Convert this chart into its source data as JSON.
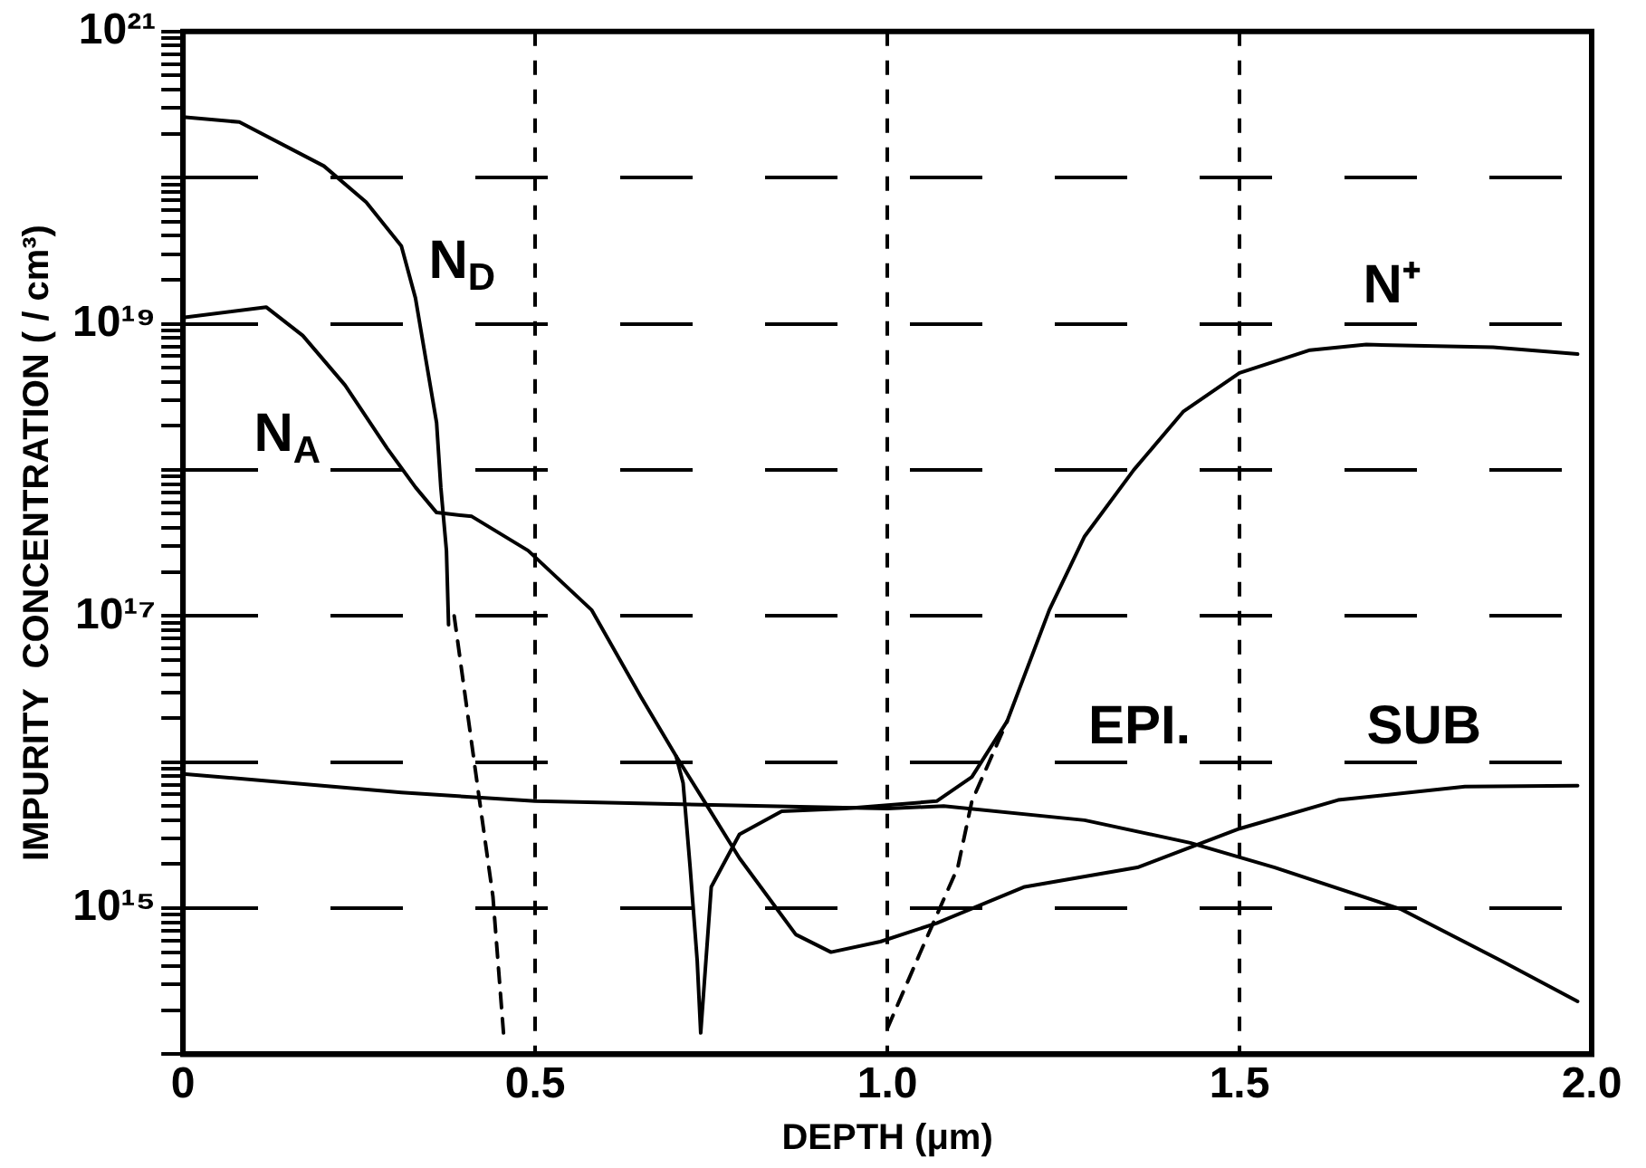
{
  "chart_data": {
    "type": "line",
    "xlabel": "DEPTH (μm)",
    "ylabel": "IMPURITY  CONCENTRATION ( / cm³)",
    "series": [
      {
        "name": "N$_{D}$",
        "color": "#000000",
        "x": [
          0,
          0.08,
          0.2,
          0.26,
          0.31,
          0.33,
          0.345,
          0.36,
          0.366,
          0.374,
          0.377
        ],
        "values": [
          2.6e+20,
          2.4e+20,
          1.2e+20,
          6.8e+19,
          3.4e+19,
          1.5e+19,
          5.6e+18,
          2.1e+18,
          7.6e+17,
          2.8e+17,
          8.7e+16
        ]
      },
      {
        "color": "#000000",
        "line_style": "dashed",
        "x": [
          0.385,
          0.42,
          0.44,
          0.455
        ],
        "values": [
          1e+17,
          5900000000000000.0,
          1200000000000000.0,
          140000000000000.0
        ]
      },
      {
        "name": "N$_{A}$",
        "color": "#000000",
        "x": [
          0,
          0.118,
          0.17,
          0.23,
          0.29,
          0.33,
          0.36,
          0.41,
          0.49,
          0.58,
          0.65,
          0.7,
          0.74,
          0.79,
          0.87,
          0.92,
          0.99,
          1.07,
          1.195,
          1.355,
          1.5,
          1.64,
          1.82,
          1.98
        ],
        "values": [
          1.1e+19,
          1.3e+19,
          8.3e+18,
          3.8e+18,
          1.4e+18,
          7.6e+17,
          5.1e+17,
          4.8e+17,
          2.8e+17,
          1.1e+17,
          2.8e+16,
          1.1e+16,
          5400000000000000.0,
          2200000000000000.0,
          660000000000000.0,
          500000000000000.0,
          590000000000000.0,
          790000000000000.0,
          1400000000000000.0,
          1900000000000000.0,
          3500000000000000.0,
          5500000000000000.0,
          6800000000000000.0,
          6900000000000000.0
        ]
      },
      {
        "name": "N⁺",
        "color": "#000000",
        "x": [
          0.7,
          0.71,
          0.72,
          0.73,
          0.735,
          0.75,
          0.79,
          0.85,
          0.94,
          1.07,
          1.12,
          1.17,
          1.23,
          1.28,
          1.35,
          1.42,
          1.5,
          1.6,
          1.68,
          1.86,
          1.98
        ],
        "values": [
          1.1e+16,
          7200000000000000.0,
          1900000000000000.0,
          440000000000000.0,
          140000000000000.0,
          1400000000000000.0,
          3200000000000000.0,
          4600000000000000.0,
          4800000000000000.0,
          5400000000000000.0,
          7900000000000000.0,
          1.9e+16,
          1.1e+17,
          3.5e+17,
          1e+18,
          2.5e+18,
          4.6e+18,
          6.6e+18,
          7.2e+18,
          6.9e+18,
          6.2e+18
        ]
      },
      {
        "color": "#000000",
        "line_style": "dashed",
        "x": [
          1,
          1.05,
          1.1,
          1.12,
          1.17
        ],
        "values": [
          150000000000000.0,
          540000000000000.0,
          1900000000000000.0,
          5400000000000000.0,
          1.9e+16
        ]
      },
      {
        "color": "#000000",
        "x": [
          0,
          0.31,
          0.5,
          1,
          1.08,
          1.28,
          1.43,
          1.55,
          1.73,
          1.87,
          1.98
        ],
        "values": [
          8300000000000000.0,
          6200000000000000.0,
          5400000000000000.0,
          4800000000000000.0,
          5000000000000000.0,
          4000000000000000.0,
          2800000000000000.0,
          1900000000000000.0,
          980000000000000.0,
          440000000000000.0,
          230000000000000.0
        ]
      }
    ],
    "annotations": [
      "EPI.",
      "SUB"
    ],
    "log": "y",
    "grid": true,
    "line_style": "solid",
    "marker": "none",
    "xlim": [
      0,
      2
    ],
    "xticks": [
      0,
      0.5,
      {
        "value": 1,
        "label": "1.0"
      },
      1.5,
      {
        "value": 2,
        "label": "2.0"
      }
    ],
    "ylim": [
      100000000000000.0,
      1e+21
    ],
    "yticks": [
      {
        "value": 100000000000000.0,
        "label": null
      },
      {
        "value": 200000000000000.0,
        "label": null
      },
      {
        "value": 300000000000000.0,
        "label": null
      },
      {
        "value": 400000000000000.0,
        "label": null
      },
      {
        "value": 500000000000000.0,
        "label": null
      },
      {
        "value": 600000000000000.0,
        "label": null
      },
      {
        "value": 700000000000000.0,
        "label": null
      },
      {
        "value": 800000000000000.0,
        "label": null
      },
      {
        "value": 900000000000000.0,
        "label": null
      },
      {
        "value": 1000000000000000.0,
        "label": "10¹⁵"
      },
      {
        "value": 2000000000000000.0,
        "label": null
      },
      {
        "value": 3000000000000000.0,
        "label": null
      },
      {
        "value": 4000000000000000.0,
        "label": null
      },
      {
        "value": 5000000000000000.0,
        "label": null
      },
      {
        "value": 6000000000000000.0,
        "label": null
      },
      {
        "value": 7000000000000000.0,
        "label": null
      },
      {
        "value": 8000000000000000.0,
        "label": null
      },
      {
        "value": 9000000000000000.0,
        "label": null
      },
      {
        "value": 1e+16,
        "label": null
      },
      {
        "value": 2e+16,
        "label": null
      },
      {
        "value": 3e+16,
        "label": null
      },
      {
        "value": 4e+16,
        "label": null
      },
      {
        "value": 5e+16,
        "label": null
      },
      {
        "value": 6e+16,
        "label": null
      },
      {
        "value": 7e+16,
        "label": null
      },
      {
        "value": 8e+16,
        "label": null
      },
      {
        "value": 9e+16,
        "label": null
      },
      {
        "value": 1e+17,
        "label": "10¹⁷"
      },
      {
        "value": 2e+17,
        "label": null
      },
      {
        "value": 3e+17,
        "label": null
      },
      {
        "value": 4e+17,
        "label": null
      },
      {
        "value": 5e+17,
        "label": null
      },
      {
        "value": 6e+17,
        "label": null
      },
      {
        "value": 7e+17,
        "label": null
      },
      {
        "value": 8e+17,
        "label": null
      },
      {
        "value": 9e+17,
        "label": null
      },
      {
        "value": 1e+18,
        "label": null
      },
      {
        "value": 2e+18,
        "label": null
      },
      {
        "value": 3e+18,
        "label": null
      },
      {
        "value": 4e+18,
        "label": null
      },
      {
        "value": 5e+18,
        "label": null
      },
      {
        "value": 6e+18,
        "label": null
      },
      {
        "value": 7e+18,
        "label": null
      },
      {
        "value": 8e+18,
        "label": null
      },
      {
        "value": 9e+18,
        "label": null
      },
      {
        "value": 1e+19,
        "label": "10¹⁹"
      },
      {
        "value": 2e+19,
        "label": null
      },
      {
        "value": 3e+19,
        "label": null
      },
      {
        "value": 4e+19,
        "label": null
      },
      {
        "value": 5e+19,
        "label": null
      },
      {
        "value": 6e+19,
        "label": null
      },
      {
        "value": 7e+19,
        "label": null
      },
      {
        "value": 8e+19,
        "label": null
      },
      {
        "value": 9e+19,
        "label": null
      },
      {
        "value": 1e+20,
        "label": null
      },
      {
        "value": 2e+20,
        "label": null
      },
      {
        "value": 3e+20,
        "label": null
      },
      {
        "value": 4e+20,
        "label": null
      },
      {
        "value": 5e+20,
        "label": null
      },
      {
        "value": 6e+20,
        "label": null
      },
      {
        "value": 7e+20,
        "label": null
      },
      {
        "value": 8e+20,
        "label": null
      },
      {
        "value": 9e+20,
        "label": null
      },
      {
        "value": 1e+21,
        "label": "10²¹"
      }
    ]
  }
}
